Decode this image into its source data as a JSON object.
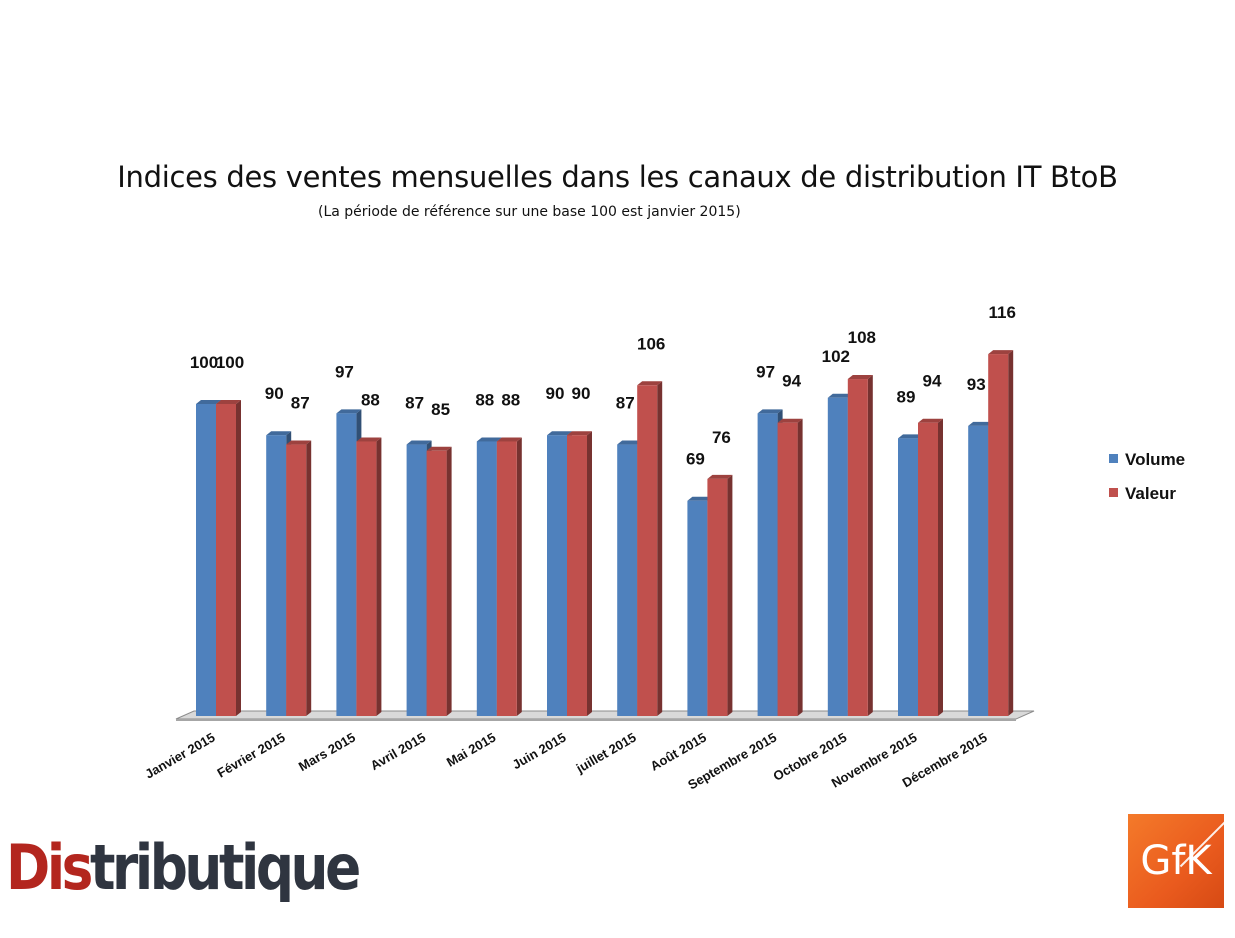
{
  "chart_data": {
    "type": "bar",
    "title": "Indices des ventes mensuelles dans les canaux de distribution IT BtoB",
    "subtitle": "(La période de référence sur une base 100 est janvier 2015)",
    "categories": [
      "Janvier 2015",
      "Février 2015",
      "Mars 2015",
      "Avril 2015",
      "Mai 2015",
      "Juin 2015",
      "juillet 2015",
      "Août 2015",
      "Septembre 2015",
      "Octobre 2015",
      "Novembre 2015",
      "Décembre 2015"
    ],
    "series": [
      {
        "name": "Volume",
        "color": "#4f81bd",
        "values": [
          100,
          90,
          97,
          87,
          88,
          90,
          87,
          69,
          97,
          102,
          89,
          93
        ]
      },
      {
        "name": "Valeur",
        "color": "#c0504d",
        "values": [
          100,
          87,
          88,
          85,
          88,
          90,
          106,
          76,
          94,
          108,
          94,
          116
        ]
      }
    ],
    "ylim": [
      0,
      116
    ],
    "grid": false,
    "data_labels": true,
    "legend_position": "right",
    "bar_style": "3d"
  },
  "logos": {
    "distributique": {
      "part_a": "Dis",
      "part_b": "tributique"
    },
    "gfk": "GfK"
  }
}
